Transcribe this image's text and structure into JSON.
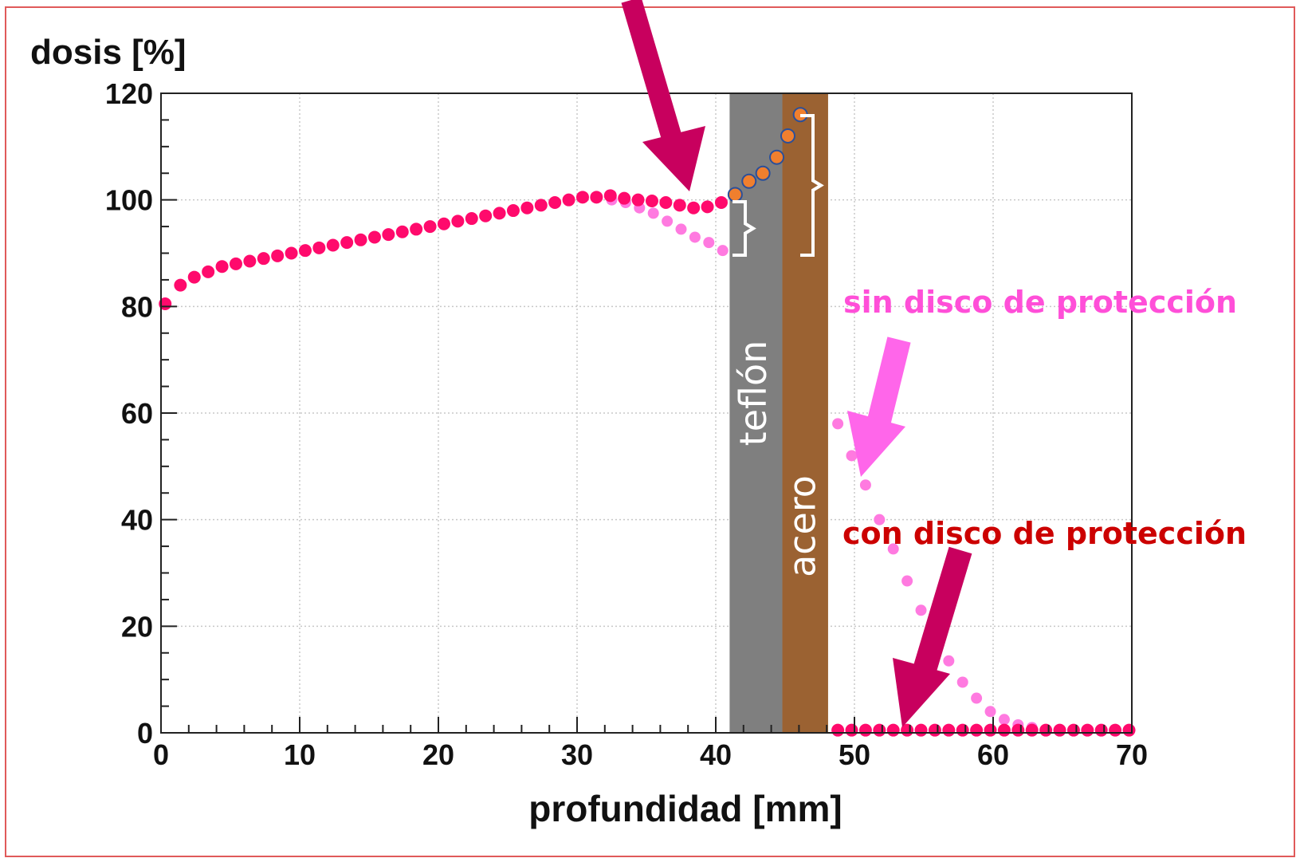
{
  "chart_data": {
    "type": "scatter",
    "ylabel": "dosis [%]",
    "xlabel": "profundidad [mm]",
    "xlim": [
      0,
      70
    ],
    "ylim": [
      0,
      120
    ],
    "xticks": [
      0,
      10,
      20,
      30,
      40,
      50,
      60,
      70
    ],
    "yticks": [
      0,
      20,
      40,
      60,
      80,
      100,
      120
    ],
    "grid": true,
    "regions": [
      {
        "label": "teflón",
        "x_start": 41.0,
        "x_end": 44.8,
        "color": "#7f7f7f"
      },
      {
        "label": "acero",
        "x_start": 44.8,
        "x_end": 48.1,
        "color": "#9b6232"
      }
    ],
    "annotations": [
      {
        "text": "sin disco de protección",
        "color": "#ff4fd8"
      },
      {
        "text": "con disco de protección",
        "color": "#cc0000"
      }
    ],
    "series": [
      {
        "color": "#ff0a6c",
        "x": [
          0.3,
          1.4,
          2.4,
          3.4,
          4.4,
          5.4,
          6.4,
          7.4,
          8.4,
          9.4,
          10.4,
          11.4,
          12.4,
          13.4,
          14.4,
          15.4,
          16.4,
          17.4,
          18.4,
          19.4,
          20.4,
          21.4,
          22.4,
          23.4,
          24.4,
          25.4,
          26.4,
          27.4,
          28.4,
          29.4,
          30.4,
          31.4,
          32.4,
          33.4,
          34.4,
          35.4,
          36.4,
          37.4,
          38.4,
          39.4,
          40.4,
          48.8,
          49.8,
          50.8,
          51.8,
          52.8,
          53.8,
          54.8,
          55.8,
          56.8,
          57.8,
          58.8,
          59.8,
          60.8,
          61.8,
          62.8,
          63.8,
          64.8,
          65.8,
          66.8,
          67.8,
          68.8,
          69.8
        ],
        "y": [
          80.5,
          84,
          85.5,
          86.5,
          87.5,
          88,
          88.5,
          89,
          89.5,
          90,
          90.5,
          91,
          91.5,
          92,
          92.5,
          93,
          93.5,
          94,
          94.5,
          95,
          95.5,
          96,
          96.5,
          97,
          97.5,
          98,
          98.5,
          99,
          99.5,
          100,
          100.5,
          100.5,
          100.8,
          100.3,
          100,
          99.8,
          99.5,
          99,
          98.5,
          98.7,
          99.5,
          0.5,
          0.5,
          0.5,
          0.5,
          0.5,
          0.5,
          0.5,
          0.5,
          0.5,
          0.5,
          0.5,
          0.5,
          0.5,
          0.5,
          0.5,
          0.5,
          0.5,
          0.5,
          0.5,
          0.5,
          0.5,
          0.5
        ]
      },
      {
        "color": "#ff7ae0",
        "x": [
          32.5,
          33.5,
          34.5,
          35.5,
          36.5,
          37.5,
          38.5,
          39.5,
          40.5,
          48.8,
          49.8,
          50.8,
          51.8,
          52.8,
          53.8,
          54.8,
          55.8,
          56.8,
          57.8,
          58.8,
          59.8,
          60.8,
          61.8,
          62.8,
          63.8,
          64.8,
          65.8,
          66.8,
          67.8,
          68.8,
          69.8
        ],
        "y": [
          100,
          99.5,
          98.5,
          97.5,
          96,
          94.5,
          93,
          92,
          90.5,
          58,
          52,
          46.5,
          40,
          34.5,
          28.5,
          23,
          17.5,
          13.5,
          9.5,
          6.5,
          4,
          2.5,
          1.5,
          1,
          0.5,
          0.5,
          0.5,
          0.5,
          0.5,
          0.5,
          0.5
        ]
      },
      {
        "color": "#f07f2e",
        "x": [
          41.4,
          42.4,
          43.4,
          44.4,
          45.2,
          46.1
        ],
        "y": [
          101,
          103.5,
          105,
          108,
          112,
          116
        ]
      }
    ]
  }
}
